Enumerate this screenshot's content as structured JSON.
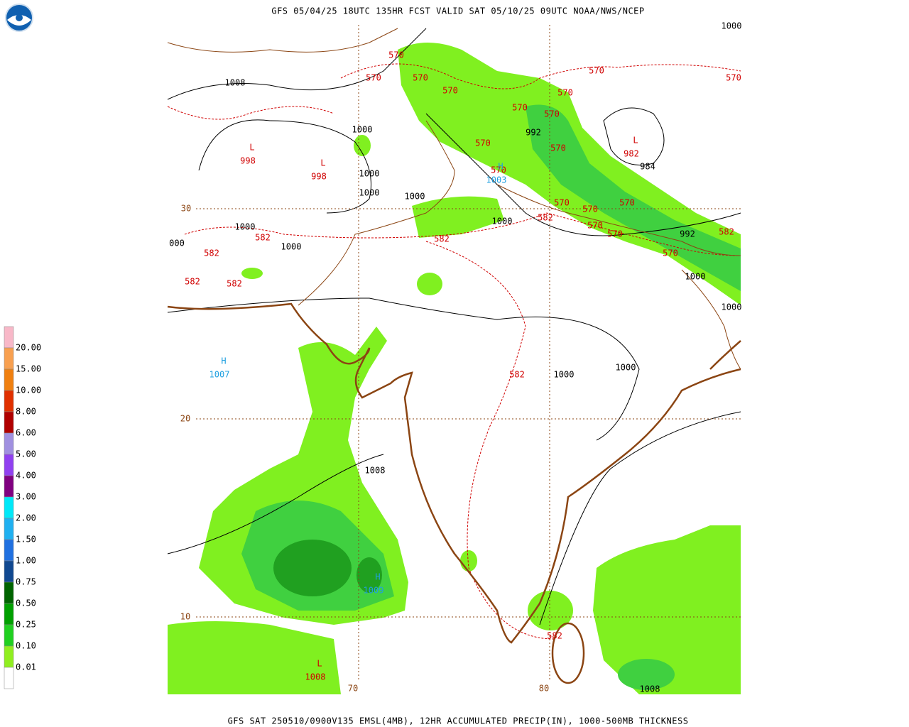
{
  "header": "GFS 05/04/25 18UTC 135HR FCST VALID SAT 05/10/25 09UTC NOAA/NWS/NCEP",
  "footer": "GFS SAT 250510/0900V135 EMSL(4MB), 12HR ACCUMULATED PRECIP(IN), 1000-500MB THICKNESS",
  "legend": {
    "labels": [
      "20.00",
      "15.00",
      "10.00",
      "8.00",
      "6.00",
      "5.00",
      "4.00",
      "3.00",
      "2.00",
      "1.50",
      "1.00",
      "0.75",
      "0.50",
      "0.25",
      "0.10",
      "0.01"
    ],
    "colors": [
      "#f8b8c8",
      "#f8a050",
      "#f08010",
      "#e03000",
      "#b00000",
      "#a090e0",
      "#9040f0",
      "#800080",
      "#00e8f8",
      "#20b0f0",
      "#2070e0",
      "#104890",
      "#006400",
      "#00a000",
      "#20d020",
      "#90ee20",
      "#ffffff"
    ]
  },
  "grid_labels": [
    "30",
    "20",
    "10",
    "70",
    "80"
  ],
  "thickness_labels": [
    "570",
    "570",
    "570",
    "570",
    "570",
    "570",
    "570",
    "570",
    "570",
    "570",
    "570",
    "570",
    "570",
    "570",
    "570",
    "570",
    "570",
    "570",
    "582",
    "582",
    "582",
    "582",
    "582",
    "582",
    "582",
    "582",
    "582"
  ],
  "thickness_color": "#d00000",
  "isobar_labels": [
    "1008",
    "1000",
    "1000",
    "1000",
    "1000",
    "1000",
    "1000",
    "1000",
    "000",
    "992",
    "984",
    "992",
    "1000",
    "1000",
    "1000",
    "1000",
    "1000",
    "1008",
    "1008"
  ],
  "isobar_color": "#000000",
  "pressure_centers": [
    {
      "symbol": "L",
      "value": "998",
      "color": "#d00000"
    },
    {
      "symbol": "L",
      "value": "998",
      "color": "#d00000"
    },
    {
      "symbol": "L",
      "value": "982",
      "color": "#d00000"
    },
    {
      "symbol": "H",
      "value": "1003",
      "color": "#20a0e0"
    },
    {
      "symbol": "H",
      "value": "1007",
      "color": "#20a0e0"
    },
    {
      "symbol": "H",
      "value": "1009",
      "color": "#20a0e0"
    },
    {
      "symbol": "L",
      "value": "1008",
      "color": "#d00000"
    }
  ],
  "grid_label_color": "#8b4513"
}
